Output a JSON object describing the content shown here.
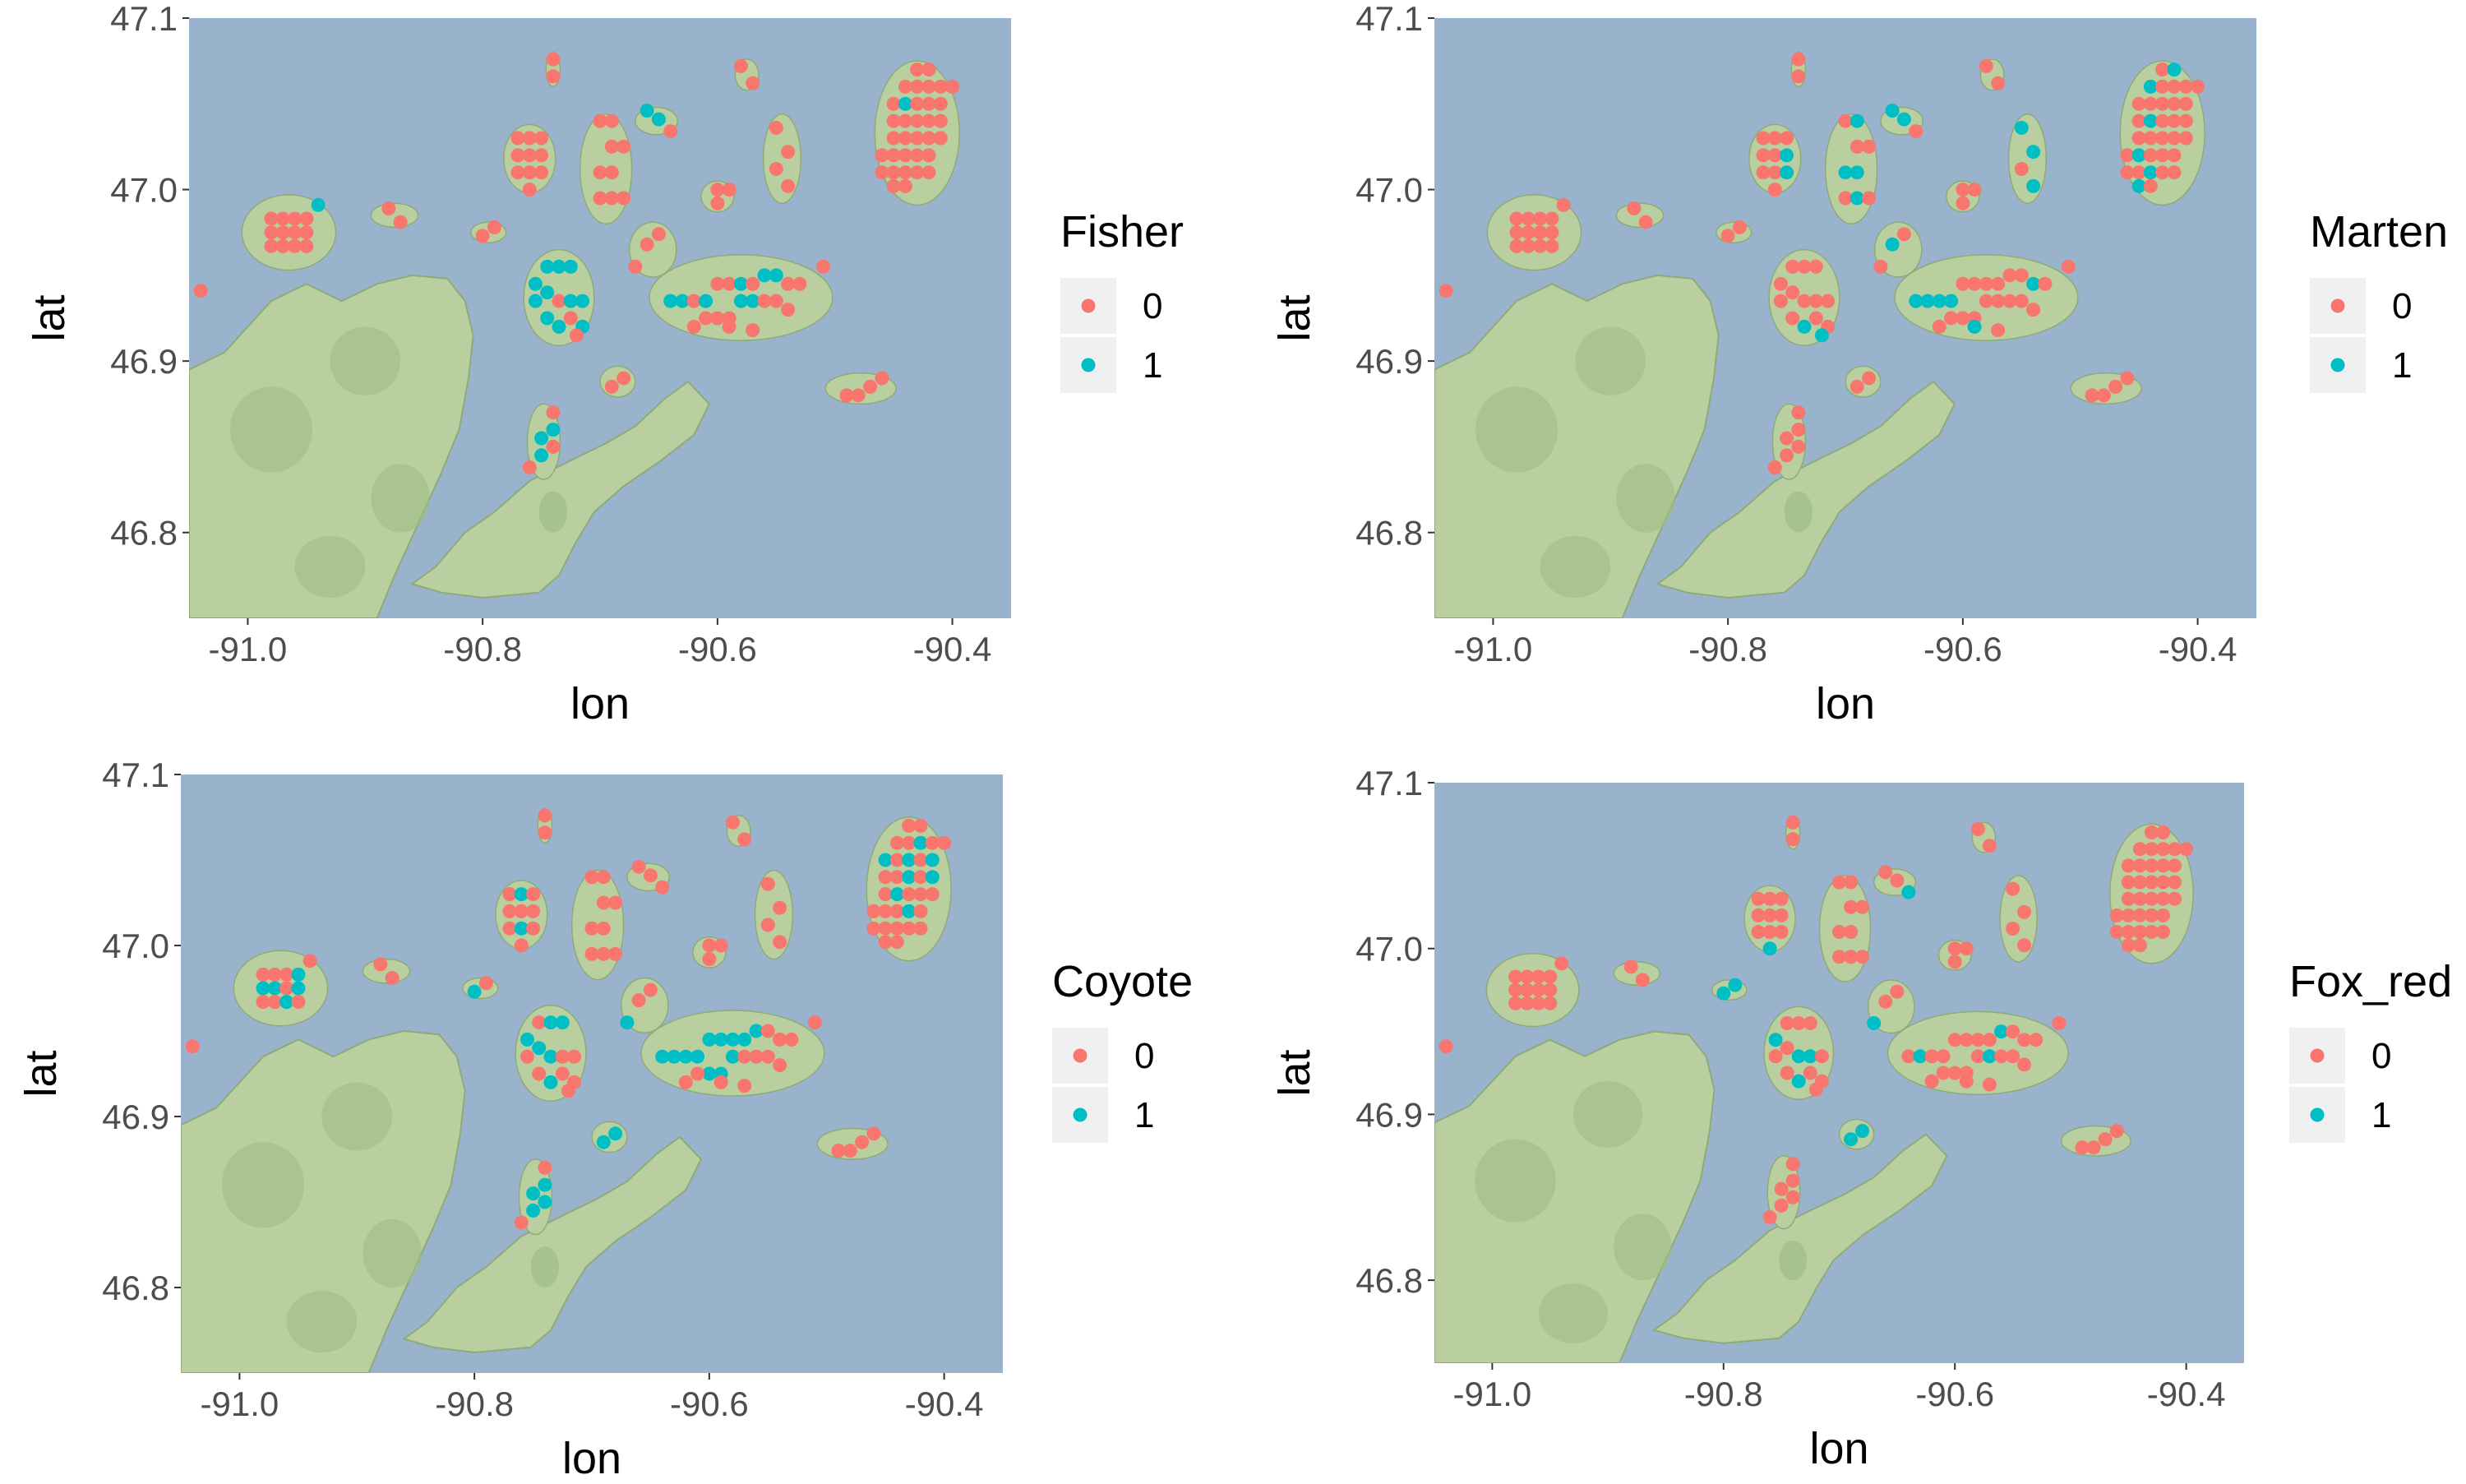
{
  "colors": {
    "water": "#99b3cc",
    "land": "#b9cf9f",
    "land_dark": "#9ebd86",
    "land_stroke": "#8faa78",
    "absent": "#f8766d",
    "present": "#00bfc4",
    "axis_text": "#4d4d4d",
    "legend_key_bg": "#f0f0f0"
  },
  "axes": {
    "xlabel": "lon",
    "ylabel": "lat",
    "xlim": [
      -91.05,
      -90.35
    ],
    "ylim": [
      46.75,
      47.1
    ],
    "xticks": [
      {
        "value": -91.0,
        "label": "-91.0"
      },
      {
        "value": -90.8,
        "label": "-90.8"
      },
      {
        "value": -90.6,
        "label": "-90.6"
      },
      {
        "value": -90.4,
        "label": "-90.4"
      }
    ],
    "yticks": [
      {
        "value": 46.8,
        "label": "46.8"
      },
      {
        "value": 46.9,
        "label": "46.9"
      },
      {
        "value": 47.0,
        "label": "47.0"
      },
      {
        "value": 47.1,
        "label": "47.1"
      }
    ]
  },
  "legend_levels": [
    {
      "value": 0,
      "label": "0",
      "color": "absent"
    },
    {
      "value": 1,
      "label": "1",
      "color": "present"
    }
  ],
  "panels": [
    {
      "species": "Fisher",
      "legend_title": "Fisher"
    },
    {
      "species": "Marten",
      "legend_title": "Marten"
    },
    {
      "species": "Coyote",
      "legend_title": "Coyote"
    },
    {
      "species": "Fox_red",
      "legend_title": "Fox_red"
    }
  ],
  "chart_data": {
    "type": "scatter",
    "description_of_points": "camera sites (lon, lat) with detection 0/1 per species",
    "sites": [
      [
        -91.04,
        46.941,
        0,
        0,
        0,
        0
      ],
      [
        -90.98,
        46.983,
        0,
        0,
        0,
        0
      ],
      [
        -90.97,
        46.983,
        0,
        0,
        0,
        0
      ],
      [
        -90.96,
        46.983,
        0,
        0,
        0,
        0
      ],
      [
        -90.95,
        46.983,
        0,
        0,
        1,
        0
      ],
      [
        -90.98,
        46.975,
        0,
        0,
        1,
        0
      ],
      [
        -90.97,
        46.975,
        0,
        0,
        1,
        0
      ],
      [
        -90.96,
        46.975,
        0,
        0,
        0,
        0
      ],
      [
        -90.95,
        46.975,
        0,
        0,
        1,
        0
      ],
      [
        -90.98,
        46.967,
        0,
        0,
        0,
        0
      ],
      [
        -90.97,
        46.967,
        0,
        0,
        0,
        0
      ],
      [
        -90.96,
        46.967,
        0,
        0,
        1,
        0
      ],
      [
        -90.95,
        46.967,
        0,
        0,
        0,
        0
      ],
      [
        -90.94,
        46.991,
        1,
        0,
        0,
        0
      ],
      [
        -90.88,
        46.989,
        0,
        0,
        0,
        0
      ],
      [
        -90.87,
        46.981,
        0,
        0,
        0,
        0
      ],
      [
        -90.8,
        46.973,
        0,
        0,
        1,
        1
      ],
      [
        -90.79,
        46.978,
        0,
        0,
        0,
        1
      ],
      [
        -90.74,
        47.076,
        0,
        0,
        0,
        0
      ],
      [
        -90.74,
        47.066,
        0,
        0,
        0,
        0
      ],
      [
        -90.77,
        47.03,
        0,
        0,
        0,
        0
      ],
      [
        -90.76,
        47.03,
        0,
        0,
        1,
        0
      ],
      [
        -90.75,
        47.03,
        0,
        0,
        0,
        0
      ],
      [
        -90.77,
        47.02,
        0,
        0,
        0,
        0
      ],
      [
        -90.76,
        47.02,
        0,
        0,
        0,
        0
      ],
      [
        -90.75,
        47.02,
        0,
        1,
        0,
        0
      ],
      [
        -90.77,
        47.01,
        0,
        0,
        0,
        0
      ],
      [
        -90.76,
        47.01,
        0,
        0,
        1,
        0
      ],
      [
        -90.75,
        47.01,
        0,
        1,
        0,
        0
      ],
      [
        -90.76,
        47.0,
        0,
        0,
        0,
        1
      ],
      [
        -90.7,
        47.04,
        0,
        0,
        0,
        0
      ],
      [
        -90.69,
        47.04,
        0,
        1,
        0,
        0
      ],
      [
        -90.69,
        47.025,
        0,
        0,
        0,
        0
      ],
      [
        -90.68,
        47.025,
        0,
        0,
        0,
        0
      ],
      [
        -90.7,
        47.01,
        0,
        1,
        0,
        0
      ],
      [
        -90.69,
        47.01,
        0,
        1,
        0,
        0
      ],
      [
        -90.7,
        46.995,
        0,
        0,
        0,
        0
      ],
      [
        -90.69,
        46.995,
        0,
        1,
        0,
        0
      ],
      [
        -90.68,
        46.995,
        0,
        0,
        0,
        0
      ],
      [
        -90.66,
        47.046,
        1,
        1,
        0,
        0
      ],
      [
        -90.65,
        47.041,
        1,
        1,
        0,
        0
      ],
      [
        -90.64,
        47.034,
        0,
        0,
        0,
        1
      ],
      [
        -90.6,
        47.0,
        0,
        0,
        0,
        0
      ],
      [
        -90.59,
        47.0,
        0,
        0,
        0,
        0
      ],
      [
        -90.6,
        46.992,
        0,
        0,
        0,
        0
      ],
      [
        -90.58,
        47.072,
        0,
        0,
        0,
        0
      ],
      [
        -90.57,
        47.062,
        0,
        0,
        0,
        0
      ],
      [
        -90.55,
        47.036,
        0,
        1,
        0,
        0
      ],
      [
        -90.54,
        47.022,
        0,
        1,
        0,
        0
      ],
      [
        -90.55,
        47.012,
        0,
        0,
        0,
        0
      ],
      [
        -90.54,
        47.002,
        0,
        1,
        0,
        0
      ],
      [
        -90.66,
        46.968,
        0,
        1,
        0,
        0
      ],
      [
        -90.65,
        46.974,
        0,
        0,
        0,
        0
      ],
      [
        -90.67,
        46.955,
        0,
        0,
        1,
        1
      ],
      [
        -90.755,
        46.945,
        1,
        0,
        1,
        1
      ],
      [
        -90.745,
        46.955,
        1,
        0,
        0,
        0
      ],
      [
        -90.735,
        46.955,
        1,
        0,
        1,
        0
      ],
      [
        -90.725,
        46.955,
        1,
        0,
        1,
        0
      ],
      [
        -90.755,
        46.935,
        1,
        0,
        0,
        0
      ],
      [
        -90.745,
        46.94,
        1,
        0,
        1,
        0
      ],
      [
        -90.735,
        46.935,
        0,
        0,
        1,
        1
      ],
      [
        -90.725,
        46.935,
        1,
        0,
        0,
        1
      ],
      [
        -90.715,
        46.935,
        1,
        0,
        0,
        0
      ],
      [
        -90.745,
        46.925,
        1,
        0,
        0,
        0
      ],
      [
        -90.735,
        46.92,
        1,
        1,
        1,
        1
      ],
      [
        -90.725,
        46.925,
        0,
        0,
        0,
        0
      ],
      [
        -90.715,
        46.92,
        1,
        0,
        0,
        0
      ],
      [
        -90.72,
        46.915,
        0,
        1,
        0,
        0
      ],
      [
        -90.69,
        46.885,
        0,
        0,
        1,
        1
      ],
      [
        -90.68,
        46.89,
        0,
        0,
        1,
        1
      ],
      [
        -90.74,
        46.87,
        0,
        0,
        0,
        0
      ],
      [
        -90.74,
        46.86,
        1,
        0,
        1,
        0
      ],
      [
        -90.74,
        46.85,
        0,
        0,
        1,
        0
      ],
      [
        -90.75,
        46.855,
        1,
        0,
        1,
        0
      ],
      [
        -90.75,
        46.845,
        1,
        0,
        1,
        0
      ],
      [
        -90.76,
        46.838,
        0,
        0,
        0,
        0
      ],
      [
        -90.64,
        46.935,
        1,
        1,
        1,
        0
      ],
      [
        -90.63,
        46.935,
        1,
        1,
        1,
        1
      ],
      [
        -90.62,
        46.935,
        0,
        1,
        1,
        0
      ],
      [
        -90.61,
        46.935,
        1,
        1,
        1,
        0
      ],
      [
        -90.6,
        46.945,
        0,
        0,
        1,
        0
      ],
      [
        -90.59,
        46.945,
        0,
        0,
        1,
        0
      ],
      [
        -90.58,
        46.945,
        1,
        0,
        1,
        0
      ],
      [
        -90.57,
        46.945,
        0,
        0,
        1,
        0
      ],
      [
        -90.6,
        46.925,
        0,
        0,
        1,
        0
      ],
      [
        -90.59,
        46.925,
        0,
        0,
        1,
        0
      ],
      [
        -90.58,
        46.935,
        1,
        0,
        1,
        0
      ],
      [
        -90.57,
        46.935,
        1,
        0,
        0,
        1
      ],
      [
        -90.56,
        46.95,
        1,
        0,
        1,
        1
      ],
      [
        -90.55,
        46.95,
        1,
        0,
        0,
        0
      ],
      [
        -90.54,
        46.945,
        0,
        1,
        0,
        0
      ],
      [
        -90.53,
        46.945,
        0,
        0,
        0,
        0
      ],
      [
        -90.56,
        46.935,
        0,
        0,
        0,
        0
      ],
      [
        -90.55,
        46.935,
        0,
        0,
        0,
        0
      ],
      [
        -90.54,
        46.93,
        0,
        0,
        0,
        0
      ],
      [
        -90.51,
        46.955,
        0,
        0,
        0,
        0
      ],
      [
        -90.62,
        46.92,
        0,
        0,
        0,
        0
      ],
      [
        -90.61,
        46.925,
        0,
        0,
        0,
        0
      ],
      [
        -90.59,
        46.92,
        0,
        1,
        0,
        0
      ],
      [
        -90.57,
        46.918,
        0,
        0,
        0,
        0
      ],
      [
        -90.49,
        46.88,
        0,
        0,
        0,
        0
      ],
      [
        -90.48,
        46.88,
        0,
        0,
        0,
        0
      ],
      [
        -90.47,
        46.885,
        0,
        0,
        0,
        0
      ],
      [
        -90.46,
        46.89,
        0,
        0,
        0,
        0
      ],
      [
        -90.44,
        47.06,
        0,
        1,
        0,
        0
      ],
      [
        -90.43,
        47.06,
        0,
        0,
        0,
        0
      ],
      [
        -90.42,
        47.06,
        0,
        0,
        1,
        0
      ],
      [
        -90.41,
        47.06,
        0,
        0,
        0,
        0
      ],
      [
        -90.4,
        47.06,
        0,
        0,
        0,
        0
      ],
      [
        -90.45,
        47.05,
        0,
        0,
        1,
        0
      ],
      [
        -90.44,
        47.05,
        1,
        0,
        0,
        0
      ],
      [
        -90.43,
        47.05,
        0,
        0,
        1,
        0
      ],
      [
        -90.42,
        47.05,
        0,
        0,
        0,
        0
      ],
      [
        -90.41,
        47.05,
        0,
        0,
        1,
        0
      ],
      [
        -90.45,
        47.04,
        0,
        0,
        0,
        0
      ],
      [
        -90.44,
        47.04,
        0,
        1,
        0,
        0
      ],
      [
        -90.43,
        47.04,
        0,
        0,
        1,
        0
      ],
      [
        -90.42,
        47.04,
        0,
        0,
        0,
        0
      ],
      [
        -90.41,
        47.04,
        0,
        0,
        1,
        0
      ],
      [
        -90.45,
        47.03,
        0,
        0,
        0,
        0
      ],
      [
        -90.44,
        47.03,
        0,
        0,
        1,
        0
      ],
      [
        -90.43,
        47.03,
        0,
        0,
        0,
        0
      ],
      [
        -90.42,
        47.03,
        0,
        0,
        0,
        0
      ],
      [
        -90.41,
        47.03,
        0,
        0,
        0,
        0
      ],
      [
        -90.46,
        47.02,
        0,
        0,
        0,
        0
      ],
      [
        -90.45,
        47.02,
        0,
        1,
        0,
        0
      ],
      [
        -90.44,
        47.02,
        0,
        0,
        0,
        0
      ],
      [
        -90.43,
        47.02,
        0,
        0,
        1,
        0
      ],
      [
        -90.42,
        47.02,
        0,
        0,
        0,
        0
      ],
      [
        -90.46,
        47.01,
        0,
        0,
        0,
        0
      ],
      [
        -90.45,
        47.01,
        0,
        0,
        0,
        0
      ],
      [
        -90.44,
        47.01,
        0,
        1,
        0,
        0
      ],
      [
        -90.43,
        47.01,
        0,
        0,
        0,
        0
      ],
      [
        -90.42,
        47.01,
        0,
        0,
        0,
        0
      ],
      [
        -90.45,
        47.002,
        0,
        1,
        0,
        0
      ],
      [
        -90.44,
        47.002,
        0,
        0,
        0,
        0
      ],
      [
        -90.43,
        47.07,
        0,
        0,
        0,
        0
      ],
      [
        -90.42,
        47.07,
        0,
        1,
        0,
        0
      ]
    ]
  }
}
